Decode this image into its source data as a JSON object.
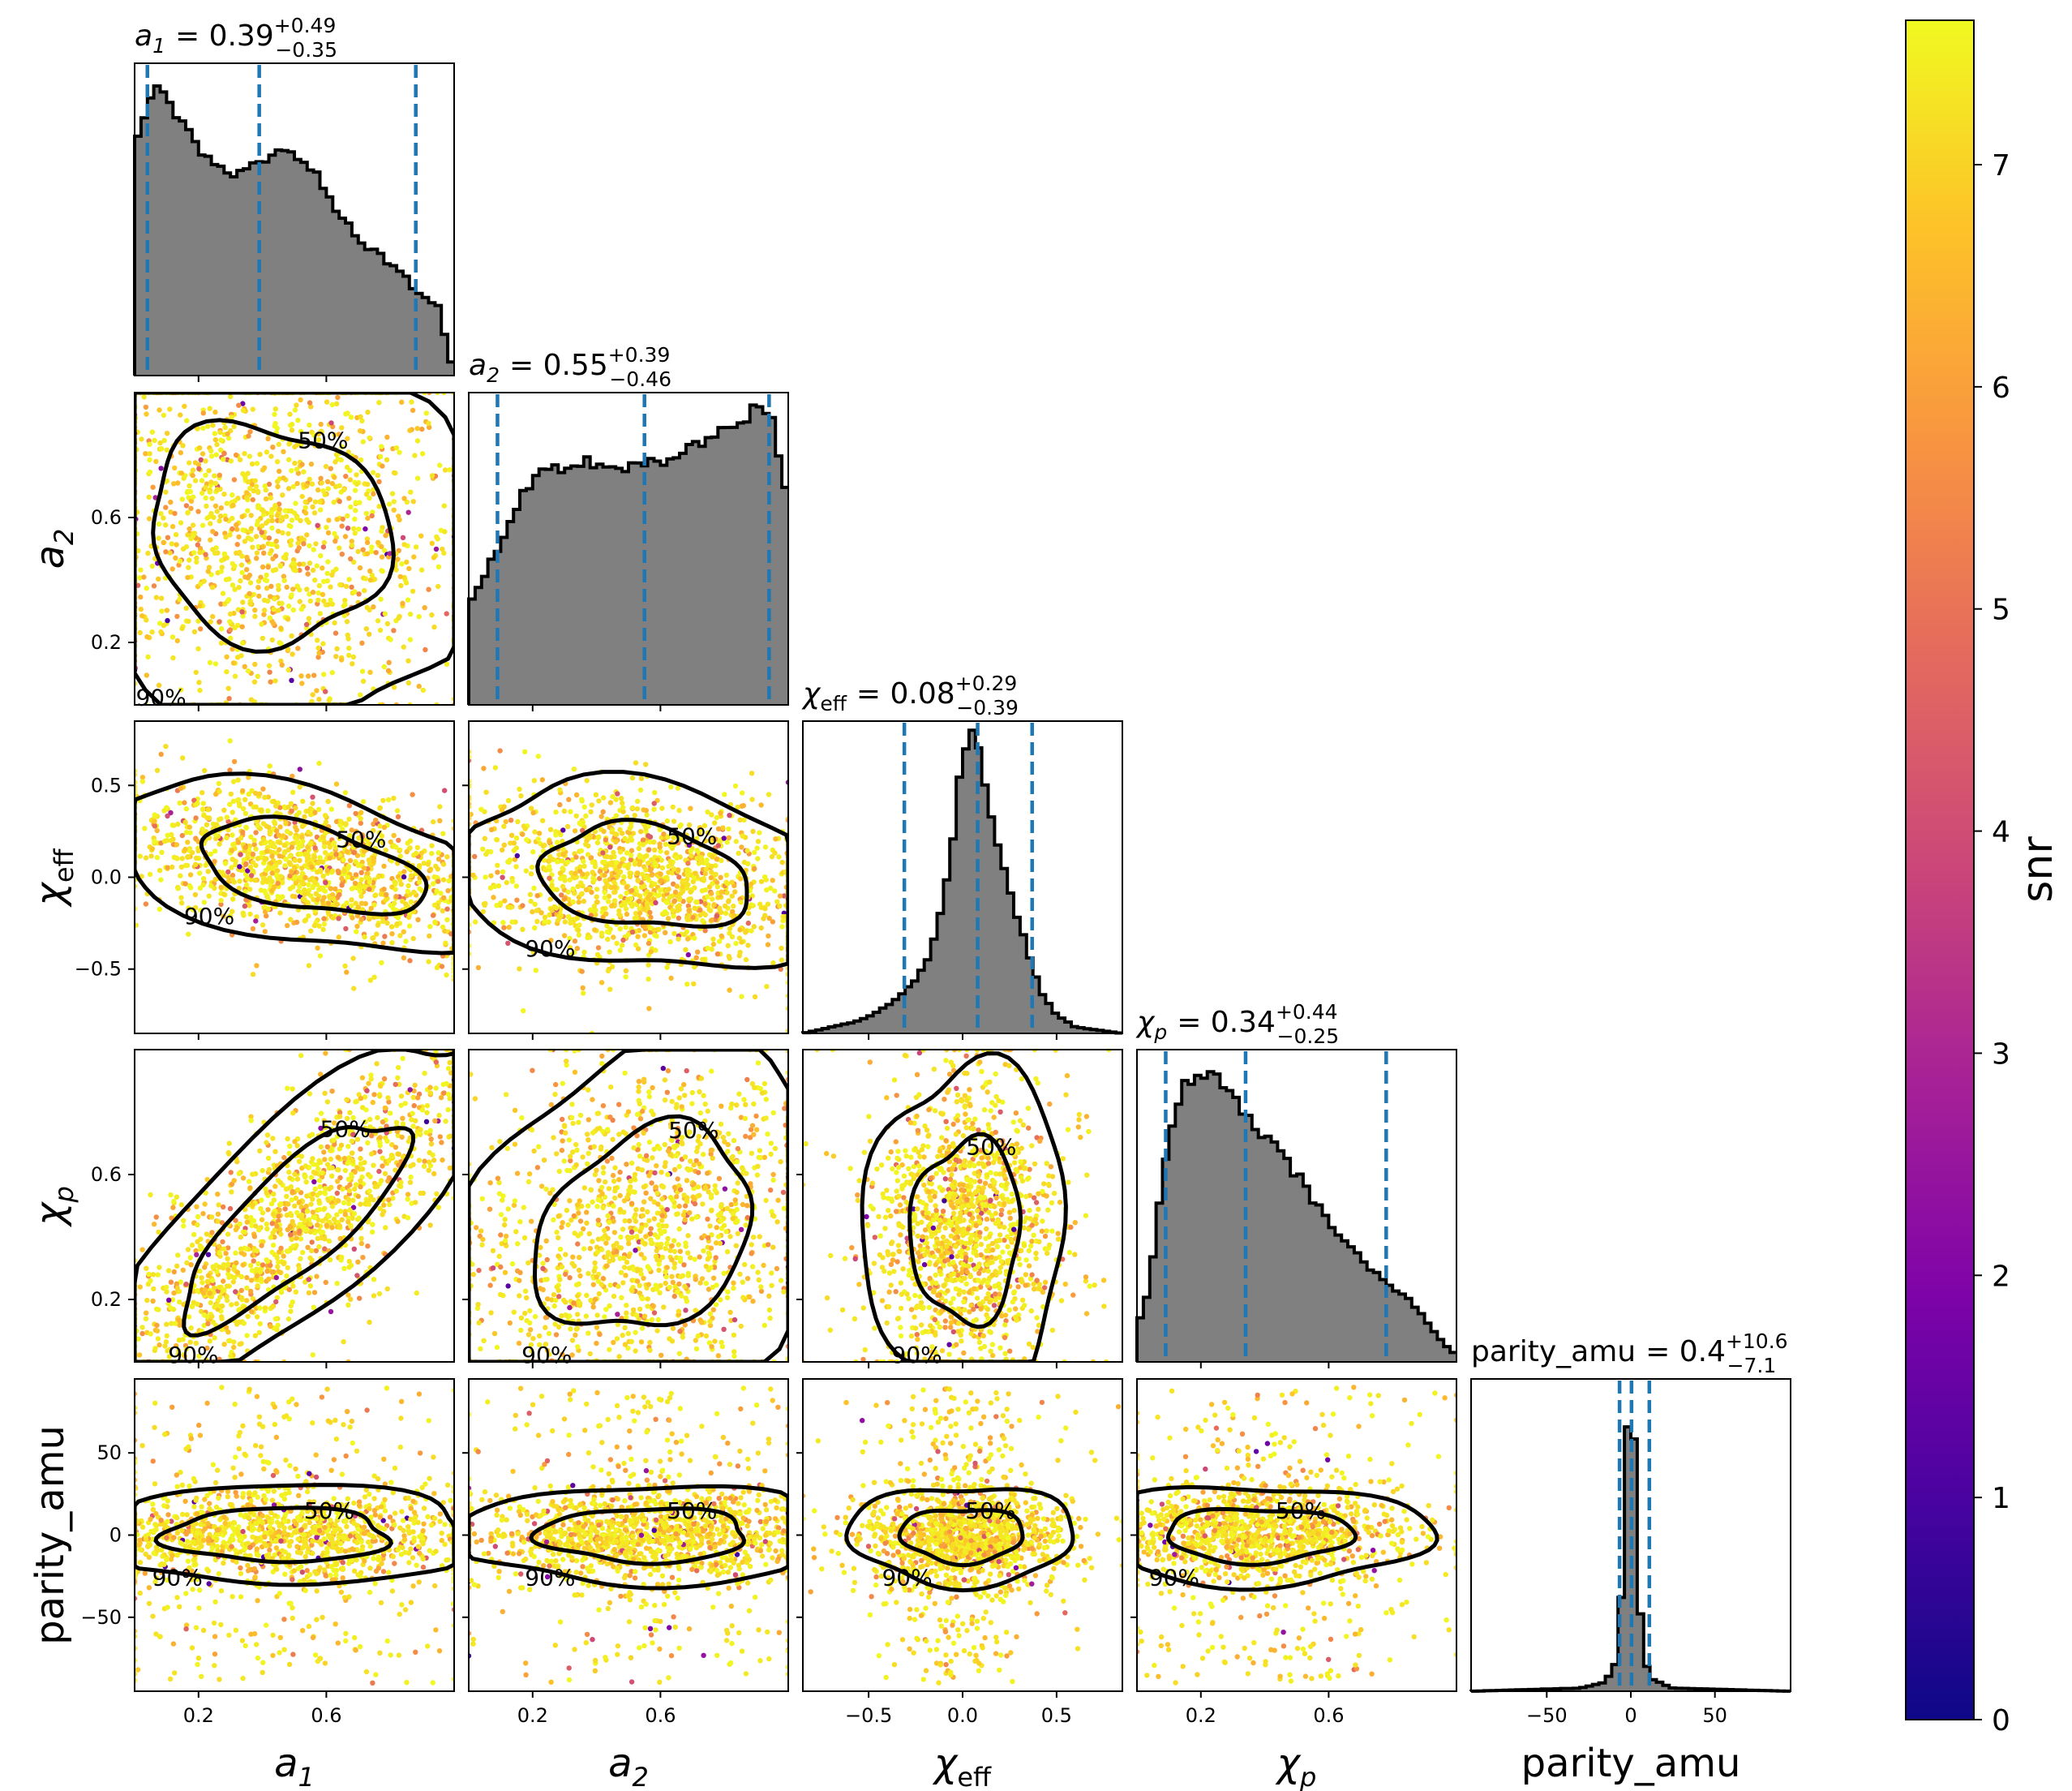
{
  "chart_data": {
    "type": "corner",
    "colorbar": {
      "label": "snr",
      "ticks": [
        "0",
        "1",
        "2",
        "3",
        "4",
        "5",
        "6",
        "7"
      ],
      "range": [
        0,
        7.65
      ],
      "colormap": "plasma"
    },
    "contour_labels": [
      "50%",
      "90%"
    ],
    "parameters": [
      {
        "key": "a1",
        "label": "a",
        "label_sub": "1",
        "range": [
          0.0,
          1.0
        ],
        "ticks": [
          0.2,
          0.6
        ],
        "tick_labels": [
          "0.2",
          "0.6"
        ],
        "title": {
          "sym": "a",
          "sub": "1",
          "eq": "= 0.39",
          "plus": "+0.49",
          "minus": "−0.35"
        },
        "quantiles": [
          0.04,
          0.39,
          0.88
        ],
        "hist_curve": [
          [
            0.0,
            0.7
          ],
          [
            0.04,
            0.88
          ],
          [
            0.08,
            0.92
          ],
          [
            0.12,
            0.87
          ],
          [
            0.16,
            0.78
          ],
          [
            0.2,
            0.72
          ],
          [
            0.25,
            0.66
          ],
          [
            0.3,
            0.64
          ],
          [
            0.35,
            0.67
          ],
          [
            0.4,
            0.67
          ],
          [
            0.45,
            0.71
          ],
          [
            0.5,
            0.72
          ],
          [
            0.55,
            0.67
          ],
          [
            0.6,
            0.6
          ],
          [
            0.65,
            0.5
          ],
          [
            0.7,
            0.44
          ],
          [
            0.75,
            0.4
          ],
          [
            0.8,
            0.36
          ],
          [
            0.85,
            0.31
          ],
          [
            0.9,
            0.25
          ],
          [
            0.95,
            0.22
          ],
          [
            1.0,
            0.0
          ]
        ]
      },
      {
        "key": "a2",
        "label": "a",
        "label_sub": "2",
        "range": [
          0.0,
          1.0
        ],
        "ticks": [
          0.2,
          0.6
        ],
        "tick_labels": [
          "0.2",
          "0.6"
        ],
        "title": {
          "sym": "a",
          "sub": "2",
          "eq": "= 0.55",
          "plus": "+0.39",
          "minus": "−0.46"
        },
        "quantiles": [
          0.09,
          0.55,
          0.94
        ],
        "hist_curve": [
          [
            0.0,
            0.32
          ],
          [
            0.05,
            0.42
          ],
          [
            0.1,
            0.52
          ],
          [
            0.15,
            0.64
          ],
          [
            0.2,
            0.71
          ],
          [
            0.25,
            0.75
          ],
          [
            0.3,
            0.77
          ],
          [
            0.35,
            0.78
          ],
          [
            0.4,
            0.78
          ],
          [
            0.45,
            0.77
          ],
          [
            0.5,
            0.77
          ],
          [
            0.55,
            0.77
          ],
          [
            0.6,
            0.78
          ],
          [
            0.65,
            0.78
          ],
          [
            0.7,
            0.82
          ],
          [
            0.75,
            0.85
          ],
          [
            0.8,
            0.88
          ],
          [
            0.85,
            0.92
          ],
          [
            0.9,
            0.94
          ],
          [
            0.95,
            0.93
          ],
          [
            1.0,
            0.62
          ]
        ]
      },
      {
        "key": "chi_eff",
        "label": "χ",
        "label_sub": "eff",
        "range": [
          -0.85,
          0.85
        ],
        "ticks": [
          -0.5,
          0.0,
          0.5
        ],
        "tick_labels": [
          "−0.5",
          "0.0",
          "0.5"
        ],
        "title": {
          "sym": "χ",
          "sub": "eff",
          "eq": "= 0.08",
          "plus": "+0.29",
          "minus": "−0.39"
        },
        "quantiles": [
          -0.31,
          0.08,
          0.37
        ],
        "hist_curve": [
          [
            -0.85,
            0.0
          ],
          [
            -0.7,
            0.02
          ],
          [
            -0.55,
            0.04
          ],
          [
            -0.45,
            0.07
          ],
          [
            -0.35,
            0.11
          ],
          [
            -0.25,
            0.17
          ],
          [
            -0.18,
            0.25
          ],
          [
            -0.12,
            0.38
          ],
          [
            -0.06,
            0.58
          ],
          [
            -0.02,
            0.8
          ],
          [
            0.02,
            0.92
          ],
          [
            0.05,
            0.97
          ],
          [
            0.08,
            0.93
          ],
          [
            0.12,
            0.78
          ],
          [
            0.18,
            0.62
          ],
          [
            0.24,
            0.48
          ],
          [
            0.3,
            0.36
          ],
          [
            0.36,
            0.24
          ],
          [
            0.42,
            0.13
          ],
          [
            0.5,
            0.06
          ],
          [
            0.6,
            0.02
          ],
          [
            0.85,
            0.0
          ]
        ]
      },
      {
        "key": "chi_p",
        "label": "χ",
        "label_sub": "p",
        "range": [
          0.0,
          1.0
        ],
        "ticks": [
          0.2,
          0.6
        ],
        "tick_labels": [
          "0.2",
          "0.6"
        ],
        "title": {
          "sym": "χ",
          "sub": "p",
          "eq": "= 0.34",
          "plus": "+0.44",
          "minus": "−0.25"
        },
        "quantiles": [
          0.09,
          0.34,
          0.78
        ],
        "hist_curve": [
          [
            0.0,
            0.1
          ],
          [
            0.04,
            0.25
          ],
          [
            0.08,
            0.6
          ],
          [
            0.12,
            0.82
          ],
          [
            0.16,
            0.9
          ],
          [
            0.2,
            0.92
          ],
          [
            0.25,
            0.9
          ],
          [
            0.3,
            0.84
          ],
          [
            0.35,
            0.78
          ],
          [
            0.4,
            0.72
          ],
          [
            0.45,
            0.66
          ],
          [
            0.5,
            0.6
          ],
          [
            0.55,
            0.52
          ],
          [
            0.6,
            0.45
          ],
          [
            0.65,
            0.38
          ],
          [
            0.7,
            0.33
          ],
          [
            0.75,
            0.28
          ],
          [
            0.8,
            0.24
          ],
          [
            0.85,
            0.2
          ],
          [
            0.9,
            0.14
          ],
          [
            0.95,
            0.07
          ],
          [
            1.0,
            0.02
          ]
        ]
      },
      {
        "key": "parity_amu",
        "label": "parity_amu",
        "label_sub": "",
        "range": [
          -95,
          95
        ],
        "ticks": [
          -50,
          0,
          50
        ],
        "tick_labels": [
          "−50",
          "0",
          "50"
        ],
        "title": {
          "sym": "parity_amu",
          "sub": "",
          "eq": "= 0.4",
          "plus": "+10.6",
          "minus": "−7.1"
        },
        "quantiles": [
          -6.7,
          0.4,
          11.0
        ],
        "hist_curve": [
          [
            -95,
            0.0
          ],
          [
            -30,
            0.01
          ],
          [
            -15,
            0.03
          ],
          [
            -8,
            0.1
          ],
          [
            -5,
            0.35
          ],
          [
            -3,
            0.72
          ],
          [
            -1,
            0.96
          ],
          [
            0.5,
            0.97
          ],
          [
            2,
            0.78
          ],
          [
            4,
            0.4
          ],
          [
            7,
            0.12
          ],
          [
            12,
            0.04
          ],
          [
            25,
            0.01
          ],
          [
            95,
            0.0
          ]
        ]
      }
    ],
    "offdiag_ticks": {
      "a2": [
        0.2,
        0.6
      ],
      "chi_eff": [
        -0.5,
        0.0,
        0.5
      ],
      "chi_p": [
        0.2,
        0.6
      ],
      "parity_amu": [
        -50,
        0,
        50
      ]
    }
  }
}
